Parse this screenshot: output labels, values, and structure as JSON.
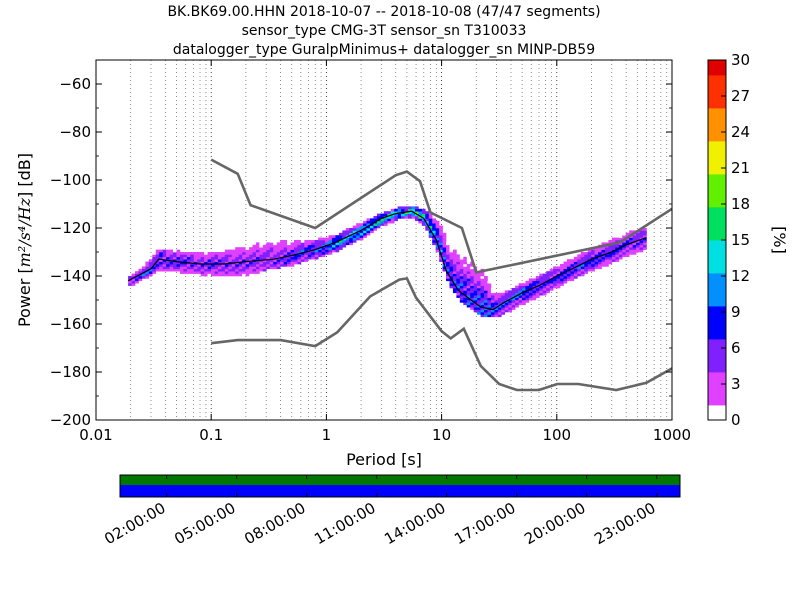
{
  "chart_data": {
    "type": "heatmap",
    "title_lines": [
      "BK.BK69.00.HHN   2018-10-07 -- 2018-10-08  (47/47 segments)",
      "sensor_type CMG-3T sensor_sn T310033",
      "datalogger_type GuralpMinimus+ datalogger_sn MINP-DB59"
    ],
    "xlabel": "Period [s]",
    "ylabel_prefix": "Power [",
    "ylabel_math": "m²/s⁴/Hz",
    "ylabel_suffix": "] [dB]",
    "x_scale": "log",
    "xlim": [
      0.01,
      1000
    ],
    "ylim": [
      -200,
      -50
    ],
    "x_ticks": [
      {
        "value": 0.01,
        "label": "0.01"
      },
      {
        "value": 0.1,
        "label": "0.1"
      },
      {
        "value": 1,
        "label": "1"
      },
      {
        "value": 10,
        "label": "10"
      },
      {
        "value": 100,
        "label": "100"
      },
      {
        "value": 1000,
        "label": "1000"
      }
    ],
    "y_ticks": [
      {
        "value": -60,
        "label": "−60"
      },
      {
        "value": -80,
        "label": "−80"
      },
      {
        "value": -100,
        "label": "−100"
      },
      {
        "value": -120,
        "label": "−120"
      },
      {
        "value": -140,
        "label": "−140"
      },
      {
        "value": -160,
        "label": "−160"
      },
      {
        "value": -180,
        "label": "−180"
      },
      {
        "value": -200,
        "label": "−200"
      }
    ],
    "grid": "dotted vertical lines at log-period subdivisions",
    "colorbar": {
      "label": "[%]",
      "min": 0,
      "max": 30,
      "ticks": [
        "0",
        "3",
        "6",
        "9",
        "12",
        "15",
        "18",
        "21",
        "24",
        "27",
        "30"
      ],
      "colors": [
        "#ffffff",
        "#e040ff",
        "#8020ff",
        "#0000ff",
        "#0090ff",
        "#00e0e0",
        "#00e060",
        "#60f000",
        "#f0f000",
        "#ff9000",
        "#ff3000",
        "#e00000"
      ]
    },
    "high_noise_model": [
      [
        0.1,
        -91.5
      ],
      [
        0.17,
        -97.4
      ],
      [
        0.22,
        -110.5
      ],
      [
        0.8,
        -120
      ],
      [
        4,
        -98
      ],
      [
        5,
        -96.5
      ],
      [
        6.5,
        -100.5
      ],
      [
        8,
        -113.5
      ],
      [
        15,
        -120
      ],
      [
        20,
        -138.5
      ],
      [
        354,
        -126
      ],
      [
        1000,
        -112
      ]
    ],
    "low_noise_model": [
      [
        0.1,
        -168
      ],
      [
        0.17,
        -166.7
      ],
      [
        0.4,
        -166.7
      ],
      [
        0.8,
        -169.2
      ],
      [
        1.24,
        -163.5
      ],
      [
        2.4,
        -148.5
      ],
      [
        4.3,
        -141.5
      ],
      [
        5,
        -141
      ],
      [
        6,
        -149
      ],
      [
        10,
        -163
      ],
      [
        12,
        -166
      ],
      [
        15.6,
        -162
      ],
      [
        21.9,
        -177.5
      ],
      [
        31.6,
        -185
      ],
      [
        45,
        -187.5
      ],
      [
        70,
        -187.5
      ],
      [
        101,
        -185
      ],
      [
        154,
        -185
      ],
      [
        328,
        -187.5
      ],
      [
        600,
        -184.5
      ],
      [
        1000,
        -178.5
      ]
    ],
    "mode_line": [
      [
        0.019,
        -142
      ],
      [
        0.025,
        -139
      ],
      [
        0.03,
        -137
      ],
      [
        0.035,
        -133
      ],
      [
        0.05,
        -134
      ],
      [
        0.08,
        -135
      ],
      [
        0.13,
        -135
      ],
      [
        0.2,
        -134
      ],
      [
        0.35,
        -133
      ],
      [
        0.55,
        -131
      ],
      [
        0.8,
        -129
      ],
      [
        1.2,
        -126
      ],
      [
        2,
        -121
      ],
      [
        3,
        -116
      ],
      [
        4,
        -114
      ],
      [
        5.5,
        -113
      ],
      [
        7,
        -116
      ],
      [
        9,
        -125
      ],
      [
        11,
        -138
      ],
      [
        14,
        -146
      ],
      [
        18,
        -150
      ],
      [
        22,
        -153
      ],
      [
        28,
        -154
      ],
      [
        35,
        -151
      ],
      [
        50,
        -147
      ],
      [
        70,
        -144
      ],
      [
        100,
        -140
      ],
      [
        150,
        -136
      ],
      [
        200,
        -133
      ],
      [
        300,
        -130
      ],
      [
        400,
        -127
      ],
      [
        600,
        -124
      ]
    ],
    "density_band": [
      {
        "period": 0.019,
        "low": -144,
        "high": -140,
        "peak": 12
      },
      {
        "period": 0.025,
        "low": -141,
        "high": -137,
        "peak": 18
      },
      {
        "period": 0.032,
        "low": -138,
        "high": -129,
        "peak": 14
      },
      {
        "period": 0.05,
        "low": -138,
        "high": -130,
        "peak": 12
      },
      {
        "period": 0.08,
        "low": -139,
        "high": -130,
        "peak": 11
      },
      {
        "period": 0.13,
        "low": -140,
        "high": -130,
        "peak": 11
      },
      {
        "period": 0.2,
        "low": -139,
        "high": -128,
        "peak": 10
      },
      {
        "period": 0.3,
        "low": -137,
        "high": -125,
        "peak": 10
      },
      {
        "period": 0.5,
        "low": -135,
        "high": -125,
        "peak": 12
      },
      {
        "period": 0.8,
        "low": -132,
        "high": -125,
        "peak": 16
      },
      {
        "period": 1.2,
        "low": -129,
        "high": -123,
        "peak": 22
      },
      {
        "period": 2,
        "low": -124,
        "high": -118,
        "peak": 20
      },
      {
        "period": 3,
        "low": -119,
        "high": -114,
        "peak": 22
      },
      {
        "period": 4,
        "low": -116,
        "high": -112,
        "peak": 26
      },
      {
        "period": 5.5,
        "low": -115,
        "high": -111,
        "peak": 30
      },
      {
        "period": 7,
        "low": -119,
        "high": -113,
        "peak": 24
      },
      {
        "period": 9,
        "low": -130,
        "high": -118,
        "peak": 18
      },
      {
        "period": 11,
        "low": -142,
        "high": -125,
        "peak": 14
      },
      {
        "period": 14,
        "low": -150,
        "high": -128,
        "peak": 14
      },
      {
        "period": 18,
        "low": -154,
        "high": -131,
        "peak": 14
      },
      {
        "period": 22,
        "low": -157,
        "high": -135,
        "peak": 16
      },
      {
        "period": 28,
        "low": -157,
        "high": -148,
        "peak": 16
      },
      {
        "period": 35,
        "low": -155,
        "high": -147,
        "peak": 16
      },
      {
        "period": 50,
        "low": -151,
        "high": -143,
        "peak": 16
      },
      {
        "period": 70,
        "low": -148,
        "high": -140,
        "peak": 15
      },
      {
        "period": 100,
        "low": -144,
        "high": -136,
        "peak": 14
      },
      {
        "period": 150,
        "low": -140,
        "high": -132,
        "peak": 14
      },
      {
        "period": 200,
        "low": -137,
        "high": -128,
        "peak": 13
      },
      {
        "period": 300,
        "low": -134,
        "high": -125,
        "peak": 12
      },
      {
        "period": 400,
        "low": -131,
        "high": -122,
        "peak": 12
      },
      {
        "period": 600,
        "low": -128,
        "high": -120,
        "peak": 12
      }
    ],
    "coverage": {
      "labels": [
        "02:00:00",
        "05:00:00",
        "08:00:00",
        "11:00:00",
        "14:00:00",
        "17:00:00",
        "20:00:00",
        "23:00:00"
      ],
      "label_hours": [
        2,
        5,
        8,
        11,
        14,
        17,
        20,
        23
      ],
      "range_hours": [
        0,
        24
      ],
      "segments_color": "#007800",
      "data_color": "#0000ff"
    }
  }
}
